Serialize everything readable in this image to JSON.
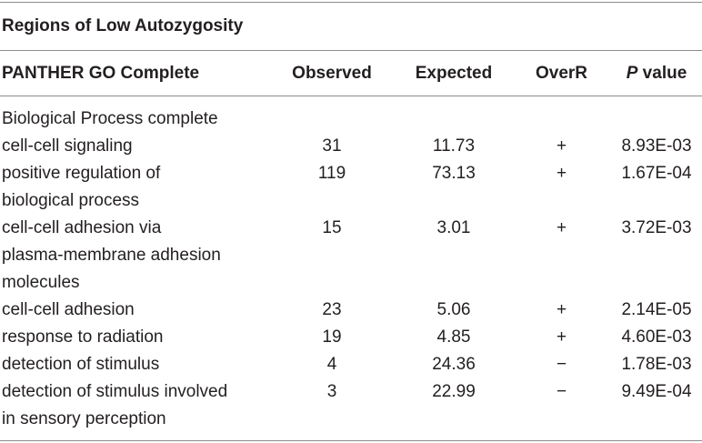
{
  "table": {
    "title": "Regions of Low Autozygosity",
    "headers": {
      "term": "PANTHER GO Complete",
      "observed": "Observed",
      "expected": "Expected",
      "overr": "OverR",
      "p_italic": "P",
      "p_rest": " value"
    },
    "section_label": "Biological Process complete",
    "rows": [
      {
        "term_lines": [
          "cell-cell signaling"
        ],
        "observed": "31",
        "expected": "11.73",
        "overr": "+",
        "p": "8.93E-03"
      },
      {
        "term_lines": [
          "positive regulation of",
          "biological process"
        ],
        "observed": "119",
        "expected": "73.13",
        "overr": "+",
        "p": "1.67E-04"
      },
      {
        "term_lines": [
          "cell-cell adhesion via",
          "plasma-membrane adhesion",
          "molecules"
        ],
        "observed": "15",
        "expected": "3.01",
        "overr": "+",
        "p": "3.72E-03"
      },
      {
        "term_lines": [
          "cell-cell adhesion"
        ],
        "observed": "23",
        "expected": "5.06",
        "overr": "+",
        "p": "2.14E-05"
      },
      {
        "term_lines": [
          "response to radiation"
        ],
        "observed": "19",
        "expected": "4.85",
        "overr": "+",
        "p": "4.60E-03"
      },
      {
        "term_lines": [
          "detection of stimulus"
        ],
        "observed": "4",
        "expected": "24.36",
        "overr": "−",
        "p": "1.78E-03"
      },
      {
        "term_lines": [
          "detection of stimulus involved",
          "in sensory perception"
        ],
        "observed": "3",
        "expected": "22.99",
        "overr": "−",
        "p": "9.49E-04"
      }
    ]
  }
}
